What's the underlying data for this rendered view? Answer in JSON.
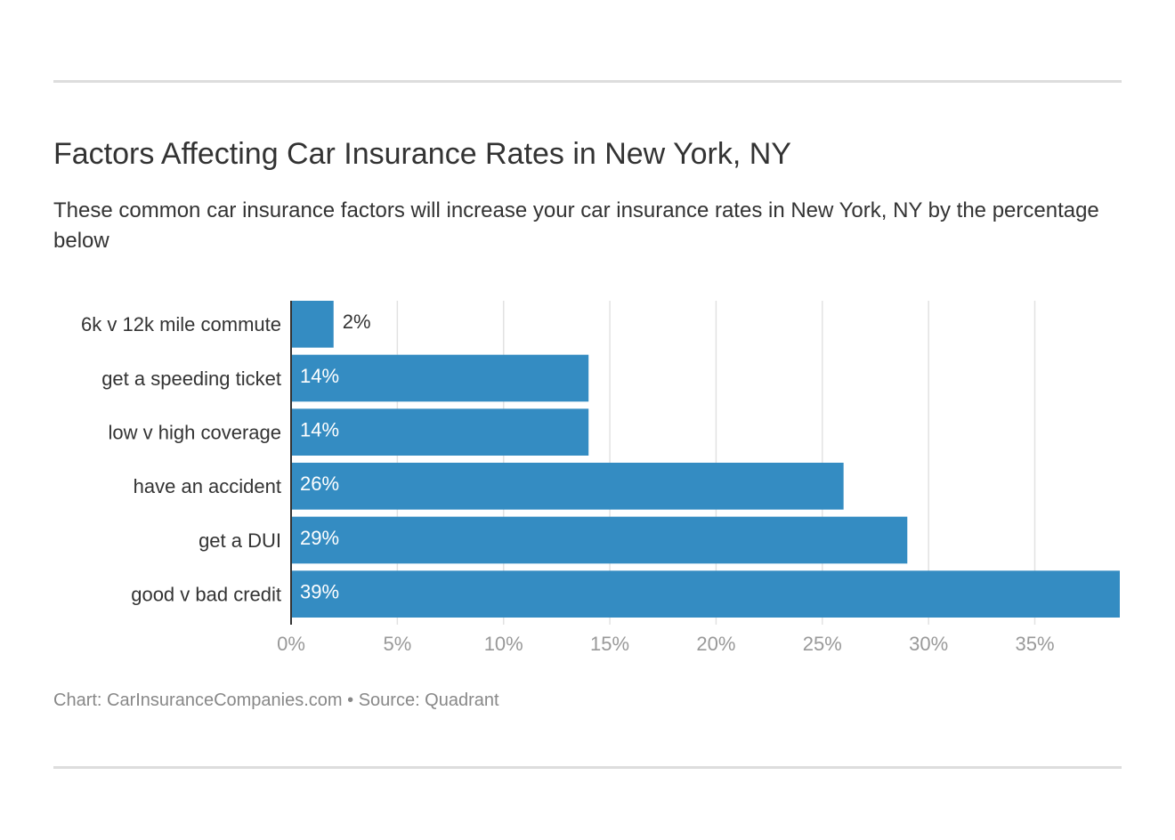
{
  "chart_data": {
    "type": "bar",
    "orientation": "horizontal",
    "title": "Factors Affecting Car Insurance Rates in New York, NY",
    "subtitle": "These common car insurance factors will increase your car insurance rates in New York, NY by the percentage below",
    "categories": [
      "6k v 12k mile commute",
      "get a speeding ticket",
      "low v high coverage",
      "have an accident",
      "get a DUI",
      "good v bad credit"
    ],
    "values": [
      2,
      14,
      14,
      26,
      29,
      39
    ],
    "value_labels": [
      "2%",
      "14%",
      "14%",
      "26%",
      "29%",
      "39%"
    ],
    "color": "#348cc2",
    "xlim": [
      0,
      39
    ],
    "xticks": [
      {
        "value": 0,
        "label": "0%"
      },
      {
        "value": 5,
        "label": "5%"
      },
      {
        "value": 10,
        "label": "10%"
      },
      {
        "value": 15,
        "label": "15%"
      },
      {
        "value": 20,
        "label": "20%"
      },
      {
        "value": 25,
        "label": "25%"
      },
      {
        "value": 30,
        "label": "30%"
      },
      {
        "value": 35,
        "label": "35%"
      }
    ],
    "grid": true,
    "footer": "Chart: CarInsuranceCompanies.com • Source: Quadrant"
  }
}
